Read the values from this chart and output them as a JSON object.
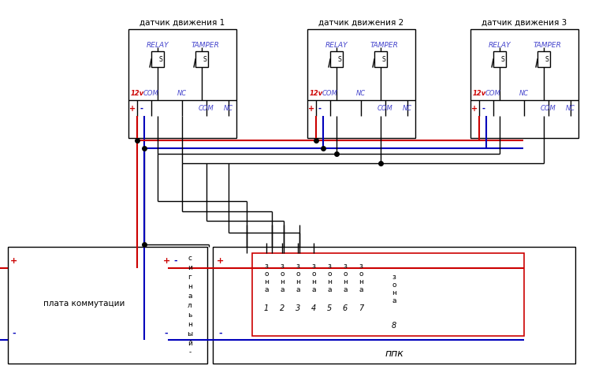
{
  "bg": "#ffffff",
  "black": "#000000",
  "red": "#cc0000",
  "blue": "#0000bb",
  "blue_lbl": "#4444cc",
  "sensor_names": [
    "датчик движения 1",
    "датчик движения 2",
    "датчик движения 3"
  ],
  "ppk_lbl": "ппк",
  "plata_lbl": "плата коммутации",
  "sig_chars": [
    "с",
    "и",
    "г",
    "н",
    "а",
    "л",
    "ь",
    "н",
    "ы",
    "й",
    "-"
  ],
  "zona_chars": [
    "з",
    "о",
    "н",
    "а"
  ],
  "zone_nums": [
    "1",
    "2",
    "3",
    "4",
    "5",
    "6",
    "7"
  ]
}
